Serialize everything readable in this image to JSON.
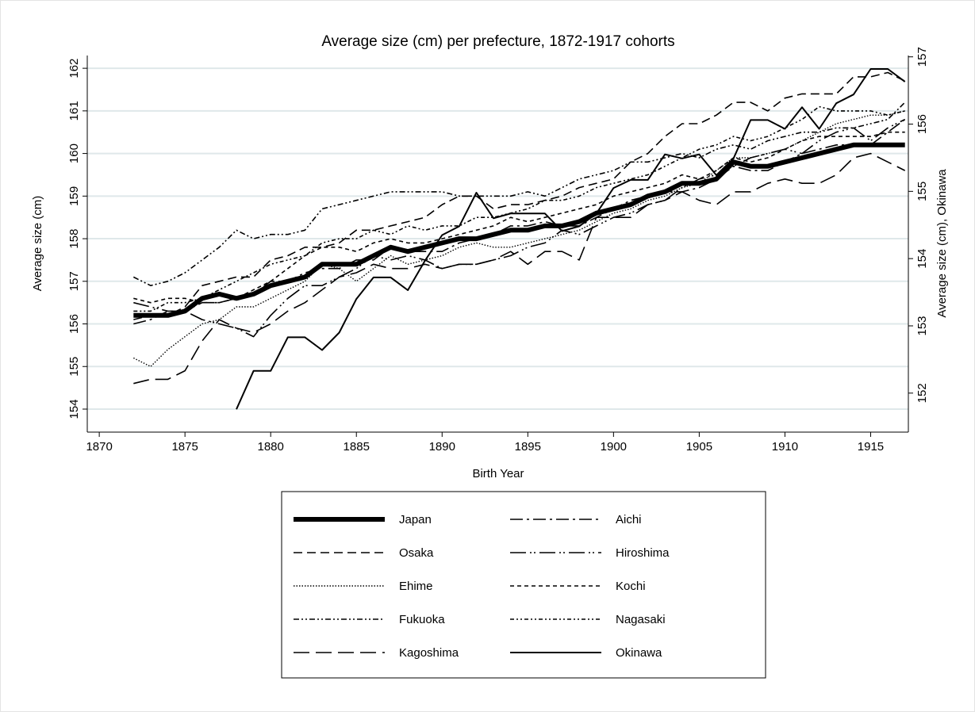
{
  "chart_data": {
    "type": "line",
    "title": "Average size (cm) per prefecture, 1872-1917 cohorts",
    "x_label": "Birth Year",
    "y_label": "Average size (cm)",
    "y2_label": "Average size (cm), Okinawa",
    "x": [
      1872,
      1873,
      1874,
      1875,
      1876,
      1877,
      1878,
      1879,
      1880,
      1881,
      1882,
      1883,
      1884,
      1885,
      1886,
      1887,
      1888,
      1889,
      1890,
      1891,
      1892,
      1893,
      1894,
      1895,
      1896,
      1897,
      1898,
      1899,
      1900,
      1901,
      1902,
      1903,
      1904,
      1905,
      1906,
      1907,
      1908,
      1909,
      1910,
      1911,
      1912,
      1913,
      1914,
      1915,
      1916,
      1917
    ],
    "xlim": [
      1869.3,
      1917.2
    ],
    "xticks": [
      1870,
      1875,
      1880,
      1885,
      1890,
      1895,
      1900,
      1905,
      1910,
      1915
    ],
    "ylim": [
      153.46,
      162.3
    ],
    "yticks": [
      154,
      155,
      156,
      157,
      158,
      159,
      160,
      161,
      162
    ],
    "y2lim": [
      151.42,
      157.02
    ],
    "y2ticks": [
      152,
      153,
      154,
      155,
      156,
      157
    ],
    "grid": true,
    "series": [
      {
        "name": "Japan",
        "color": "#000000",
        "dash": "solid-thick",
        "values": [
          156.2,
          156.2,
          156.2,
          156.3,
          156.6,
          156.7,
          156.6,
          156.7,
          156.9,
          157.0,
          157.1,
          157.4,
          157.4,
          157.4,
          157.6,
          157.8,
          157.7,
          157.8,
          157.9,
          158.0,
          158.0,
          158.1,
          158.2,
          158.2,
          158.3,
          158.3,
          158.4,
          158.6,
          158.7,
          158.8,
          159.0,
          159.1,
          159.3,
          159.3,
          159.4,
          159.8,
          159.7,
          159.7,
          159.8,
          159.9,
          160.0,
          160.1,
          160.2,
          160.2,
          160.2,
          160.2
        ]
      },
      {
        "name": "Osaka",
        "color": "#000000",
        "dash": "dash",
        "values": [
          156.1,
          156.2,
          156.2,
          156.4,
          156.9,
          157.0,
          157.1,
          157.1,
          157.5,
          157.6,
          157.8,
          157.8,
          157.9,
          158.2,
          158.2,
          158.3,
          158.4,
          158.5,
          158.8,
          159.0,
          159.0,
          158.7,
          158.8,
          158.8,
          158.9,
          159.0,
          159.2,
          159.3,
          159.4,
          159.8,
          160.0,
          160.4,
          160.7,
          160.7,
          160.9,
          161.2,
          161.2,
          161.0,
          161.3,
          161.4,
          161.4,
          161.4,
          161.8,
          161.8,
          161.9,
          161.7
        ]
      },
      {
        "name": "Ehime",
        "color": "#000000",
        "dash": "dot",
        "values": [
          155.2,
          155.0,
          155.4,
          155.7,
          156.0,
          156.1,
          156.4,
          156.4,
          156.6,
          156.8,
          157.0,
          157.4,
          157.3,
          157.0,
          157.3,
          157.6,
          157.4,
          157.5,
          157.6,
          157.8,
          157.9,
          157.8,
          157.8,
          157.9,
          158.0,
          158.1,
          158.2,
          158.4,
          158.6,
          158.7,
          158.9,
          159.0,
          159.2,
          159.3,
          159.6,
          159.9,
          159.9,
          160.0,
          160.1,
          160.3,
          160.5,
          160.7,
          160.8,
          160.9,
          160.9,
          161.0
        ]
      },
      {
        "name": "Fukuoka",
        "color": "#000000",
        "dash": "dashdotdot",
        "values": [
          157.1,
          156.9,
          157.0,
          157.2,
          157.5,
          157.8,
          158.2,
          158.0,
          158.1,
          158.1,
          158.2,
          158.7,
          158.8,
          158.9,
          159.0,
          159.1,
          159.1,
          159.1,
          159.1,
          159.0,
          159.0,
          159.0,
          159.0,
          159.1,
          159.0,
          159.2,
          159.4,
          159.5,
          159.6,
          159.8,
          159.8,
          159.9,
          160.0,
          159.9,
          160.1,
          160.2,
          160.1,
          160.3,
          160.4,
          160.5,
          160.5,
          160.6,
          160.6,
          160.7,
          160.8,
          161.2
        ]
      },
      {
        "name": "Kagoshima",
        "color": "#000000",
        "dash": "longdash",
        "values": [
          154.6,
          154.7,
          154.7,
          154.9,
          155.6,
          156.1,
          155.9,
          155.8,
          156.0,
          156.3,
          156.5,
          156.8,
          157.1,
          157.2,
          157.4,
          157.3,
          157.3,
          157.4,
          157.3,
          157.4,
          157.4,
          157.5,
          157.7,
          157.4,
          157.7,
          157.7,
          157.5,
          158.5,
          158.5,
          158.5,
          158.8,
          158.9,
          159.1,
          158.9,
          158.8,
          159.1,
          159.1,
          159.3,
          159.4,
          159.3,
          159.3,
          159.5,
          159.9,
          160.0,
          159.8,
          159.6
        ]
      },
      {
        "name": "Aichi",
        "color": "#000000",
        "dash": "longdashdot",
        "values": [
          156.0,
          156.1,
          156.3,
          156.3,
          156.5,
          156.5,
          156.6,
          156.7,
          157.0,
          157.0,
          157.2,
          157.3,
          157.3,
          157.5,
          157.5,
          157.8,
          157.7,
          157.7,
          157.7,
          157.9,
          158.0,
          158.1,
          158.3,
          158.3,
          158.4,
          158.3,
          158.3,
          158.5,
          158.7,
          158.9,
          159.0,
          159.1,
          159.1,
          159.2,
          159.4,
          159.7,
          159.6,
          159.6,
          159.8,
          160.0,
          160.1,
          160.2,
          160.2,
          160.2,
          160.5,
          160.8
        ]
      },
      {
        "name": "Hiroshima",
        "color": "#000000",
        "dash": "longdashdotdot",
        "values": [
          156.5,
          156.4,
          156.3,
          156.3,
          156.1,
          156.0,
          155.9,
          155.7,
          156.2,
          156.6,
          156.9,
          156.9,
          157.1,
          157.3,
          157.6,
          157.5,
          157.6,
          157.5,
          157.3,
          157.4,
          157.4,
          157.5,
          157.6,
          157.8,
          157.9,
          158.2,
          158.1,
          158.3,
          158.5,
          158.6,
          158.8,
          158.9,
          159.2,
          159.4,
          159.5,
          159.7,
          159.9,
          160.0,
          160.1,
          160.0,
          160.3,
          160.5,
          160.6,
          160.3,
          160.6,
          160.8
        ]
      },
      {
        "name": "Kochi",
        "color": "#000000",
        "dash": "shortdash",
        "values": [
          156.6,
          156.5,
          156.6,
          156.6,
          156.5,
          156.5,
          156.6,
          156.8,
          157.0,
          157.3,
          157.6,
          157.8,
          157.8,
          157.7,
          157.9,
          158.0,
          157.9,
          157.9,
          158.0,
          158.1,
          158.2,
          158.3,
          158.5,
          158.4,
          158.5,
          158.6,
          158.7,
          158.8,
          159.0,
          159.1,
          159.2,
          159.3,
          159.5,
          159.4,
          159.6,
          159.9,
          159.8,
          159.9,
          160.1,
          160.3,
          160.4,
          160.4,
          160.4,
          160.4,
          160.5,
          160.5
        ]
      },
      {
        "name": "Nagasaki",
        "color": "#000000",
        "dash": "shortdashdotdot",
        "values": [
          156.3,
          156.3,
          156.5,
          156.5,
          156.6,
          156.8,
          157.0,
          157.2,
          157.4,
          157.5,
          157.6,
          157.9,
          158.0,
          158.0,
          158.2,
          158.1,
          158.3,
          158.2,
          158.3,
          158.3,
          158.5,
          158.5,
          158.6,
          158.7,
          158.9,
          158.9,
          159.0,
          159.2,
          159.3,
          159.4,
          159.5,
          159.7,
          159.9,
          160.1,
          160.2,
          160.4,
          160.3,
          160.4,
          160.6,
          160.8,
          161.1,
          161.0,
          161.0,
          161.0,
          160.9,
          161.0
        ]
      },
      {
        "name": "Okinawa",
        "color": "#000000",
        "dash": "solid",
        "axis": "y2",
        "values": [
          null,
          null,
          null,
          null,
          null,
          null,
          151.76,
          152.33,
          152.33,
          152.83,
          152.83,
          152.64,
          152.9,
          153.4,
          153.72,
          153.72,
          153.53,
          153.97,
          154.35,
          154.48,
          154.98,
          154.6,
          154.67,
          154.67,
          154.67,
          154.41,
          154.48,
          154.67,
          155.05,
          155.17,
          155.17,
          155.55,
          155.49,
          155.55,
          155.24,
          155.49,
          156.06,
          156.06,
          155.93,
          156.25,
          155.93,
          156.31,
          156.44,
          156.82,
          156.82,
          156.63
        ]
      }
    ]
  }
}
